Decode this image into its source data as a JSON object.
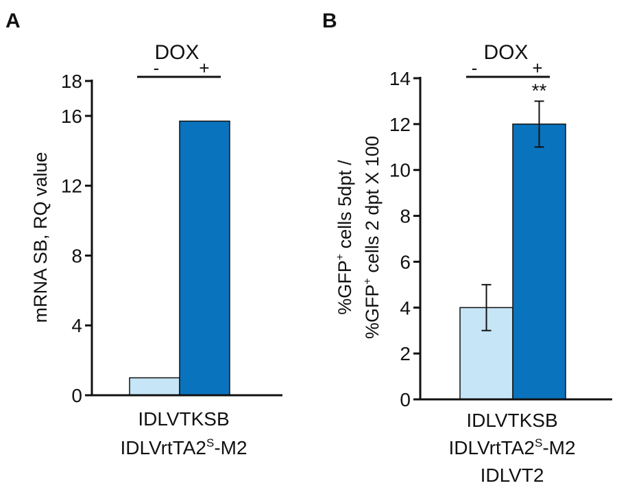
{
  "chart_data": [
    {
      "panel": "A",
      "type": "bar",
      "dox_label": "DOX",
      "categories": [
        "-",
        "+"
      ],
      "values": [
        1.0,
        15.7
      ],
      "colors": [
        "#c6e5f6",
        "#0a73bd"
      ],
      "ylabel": "mRNA SB, RQ value",
      "xlabel_lines": [
        "IDLVTKSB",
        "IDLVrtTA2",
        "S",
        "-M2"
      ],
      "ylim": [
        0,
        18
      ],
      "yticks": [
        0,
        4,
        8,
        12,
        16,
        18
      ],
      "ytick_labels": [
        "0",
        "4",
        "8",
        "12",
        "16",
        "18"
      ]
    },
    {
      "panel": "B",
      "type": "bar",
      "dox_label": "DOX",
      "categories": [
        "-",
        "+"
      ],
      "values": [
        4.0,
        12.0
      ],
      "errors": [
        1.0,
        1.0
      ],
      "colors": [
        "#c6e5f6",
        "#0a73bd"
      ],
      "annotation": "**",
      "ylabel_lines": [
        "%GFP",
        "+",
        " cells 5dpt /",
        "%GFP",
        "+",
        " cells 2 dpt X 100"
      ],
      "xlabel_lines": [
        "IDLVTKSB",
        "IDLVrtTA2",
        "S",
        "-M2",
        "IDLVT2"
      ],
      "ylim": [
        0,
        14
      ],
      "yticks": [
        0,
        2,
        4,
        6,
        8,
        10,
        12,
        14
      ],
      "ytick_labels": [
        "0",
        "2",
        "4",
        "6",
        "8",
        "10",
        "12",
        "14"
      ]
    }
  ]
}
